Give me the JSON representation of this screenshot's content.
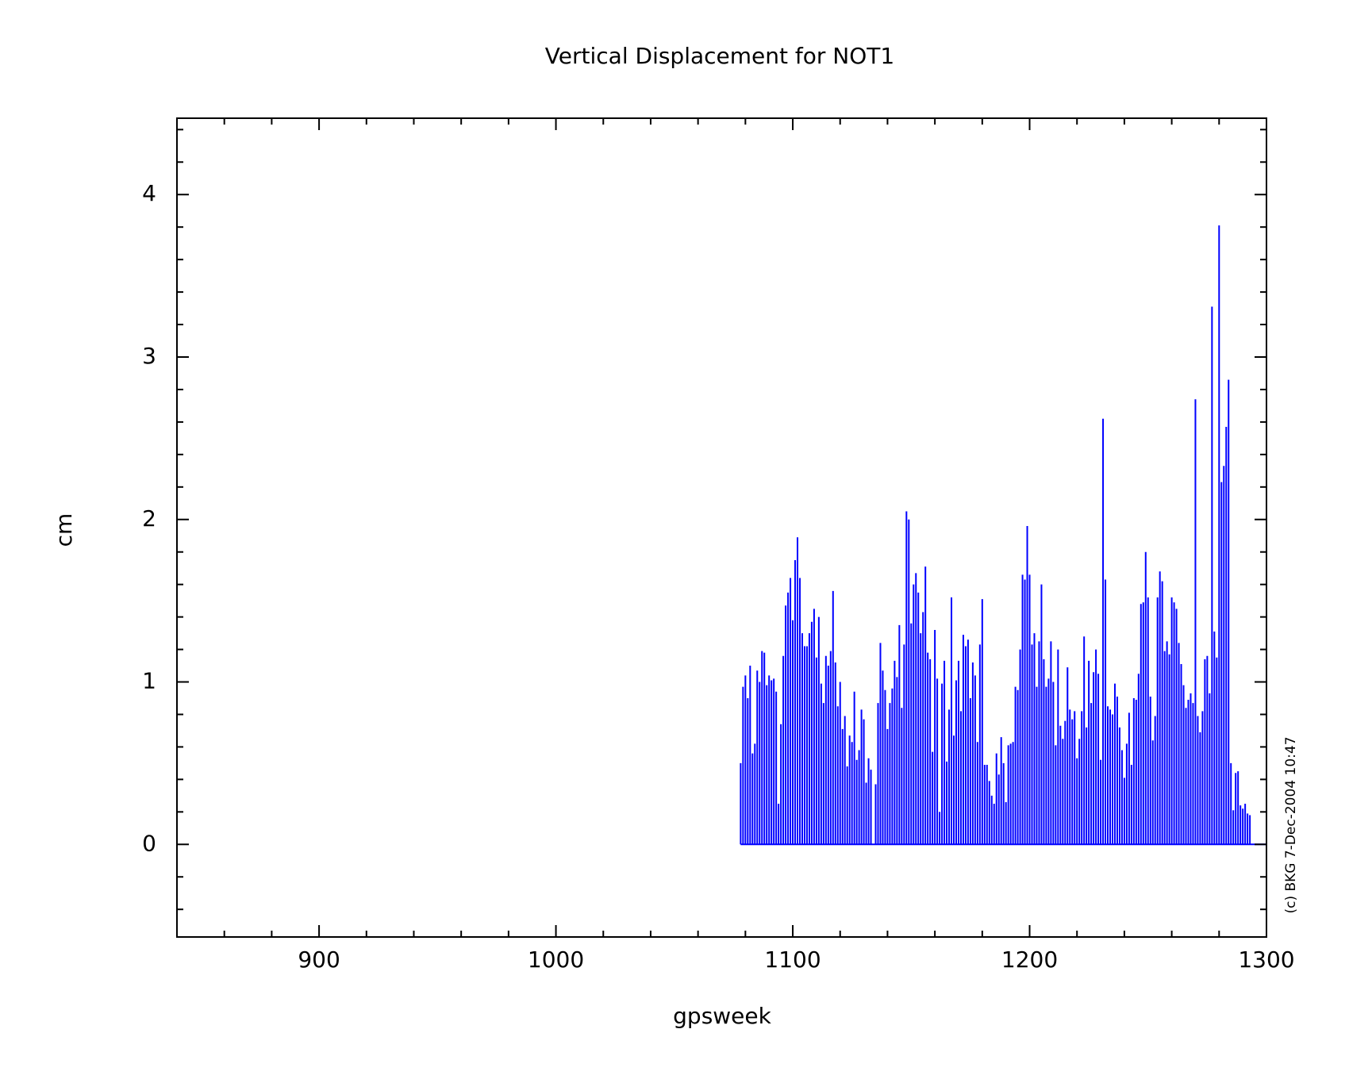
{
  "chart_data": {
    "type": "bar",
    "title": "Vertical Displacement for NOT1",
    "xlabel": "gpsweek",
    "ylabel": "cm",
    "annotation": "(c) BKG 7-Dec-2004 10:47",
    "color": "#0000ff",
    "xlim": [
      840,
      1300
    ],
    "ylim": [
      -0.57,
      4.47
    ],
    "xticks": [
      900,
      1000,
      1100,
      1200,
      1300
    ],
    "yticks": [
      0,
      1,
      2,
      3,
      4
    ],
    "xminorticks": [
      860,
      880,
      920,
      940,
      960,
      980,
      1020,
      1040,
      1060,
      1080,
      1120,
      1140,
      1160,
      1180,
      1220,
      1240,
      1260,
      1280
    ],
    "yminorticks": [
      -0.4,
      -0.2,
      0.2,
      0.4,
      0.6,
      0.8,
      1.2,
      1.4,
      1.6,
      1.8,
      2.2,
      2.4,
      2.6,
      2.8,
      3.2,
      3.4,
      3.6,
      3.8,
      4.2,
      4.4
    ],
    "x": [
      1078,
      1079,
      1080,
      1081,
      1082,
      1083,
      1084,
      1085,
      1086,
      1087,
      1088,
      1089,
      1090,
      1091,
      1092,
      1093,
      1094,
      1095,
      1096,
      1097,
      1098,
      1099,
      1100,
      1101,
      1102,
      1103,
      1104,
      1105,
      1106,
      1107,
      1108,
      1109,
      1110,
      1111,
      1112,
      1113,
      1114,
      1115,
      1116,
      1117,
      1118,
      1119,
      1120,
      1121,
      1122,
      1123,
      1124,
      1125,
      1126,
      1127,
      1128,
      1129,
      1130,
      1131,
      1132,
      1133,
      1135,
      1136,
      1137,
      1138,
      1139,
      1140,
      1141,
      1142,
      1143,
      1144,
      1145,
      1146,
      1147,
      1148,
      1149,
      1150,
      1151,
      1152,
      1153,
      1154,
      1155,
      1156,
      1157,
      1158,
      1159,
      1160,
      1161,
      1162,
      1163,
      1164,
      1165,
      1166,
      1167,
      1168,
      1169,
      1170,
      1171,
      1172,
      1173,
      1174,
      1175,
      1176,
      1177,
      1178,
      1179,
      1180,
      1181,
      1182,
      1183,
      1184,
      1185,
      1186,
      1187,
      1188,
      1189,
      1190,
      1191,
      1192,
      1193,
      1194,
      1195,
      1196,
      1197,
      1198,
      1199,
      1200,
      1201,
      1202,
      1203,
      1204,
      1205,
      1206,
      1207,
      1208,
      1209,
      1210,
      1211,
      1212,
      1213,
      1214,
      1215,
      1216,
      1217,
      1218,
      1219,
      1220,
      1221,
      1222,
      1223,
      1224,
      1225,
      1226,
      1227,
      1228,
      1229,
      1230,
      1231,
      1232,
      1233,
      1234,
      1235,
      1236,
      1237,
      1238,
      1239,
      1240,
      1241,
      1242,
      1243,
      1244,
      1245,
      1246,
      1247,
      1248,
      1249,
      1250,
      1251,
      1252,
      1253,
      1254,
      1255,
      1256,
      1257,
      1258,
      1259,
      1260,
      1261,
      1262,
      1263,
      1264,
      1265,
      1266,
      1267,
      1268,
      1269,
      1270,
      1271,
      1272,
      1273,
      1274,
      1275,
      1276,
      1277,
      1278,
      1279,
      1280,
      1281,
      1282,
      1283,
      1284,
      1285,
      1286,
      1287,
      1288,
      1289,
      1290,
      1291,
      1292,
      1293
    ],
    "values": [
      0.5,
      0.97,
      1.04,
      0.9,
      1.1,
      0.56,
      0.62,
      1.07,
      1.0,
      1.19,
      1.18,
      0.98,
      1.04,
      1.01,
      1.02,
      0.94,
      0.25,
      0.74,
      1.16,
      1.47,
      1.55,
      1.64,
      1.38,
      1.75,
      1.89,
      1.64,
      1.3,
      1.22,
      1.22,
      1.3,
      1.37,
      1.45,
      1.15,
      1.4,
      0.99,
      0.87,
      1.16,
      1.1,
      1.19,
      1.56,
      1.12,
      0.85,
      1.0,
      0.71,
      0.79,
      0.48,
      0.67,
      0.63,
      0.94,
      0.52,
      0.58,
      0.83,
      0.77,
      0.38,
      0.53,
      0.46,
      0.37,
      0.87,
      1.24,
      1.07,
      0.95,
      0.71,
      0.87,
      0.96,
      1.13,
      1.03,
      1.35,
      0.84,
      1.23,
      2.05,
      2.0,
      1.36,
      1.6,
      1.67,
      1.55,
      1.3,
      1.43,
      1.71,
      1.18,
      1.14,
      0.57,
      1.32,
      1.02,
      0.2,
      0.99,
      1.13,
      0.51,
      0.83,
      1.52,
      0.67,
      1.01,
      1.13,
      0.82,
      1.29,
      1.22,
      1.26,
      0.9,
      1.12,
      1.04,
      0.63,
      1.23,
      1.51,
      0.49,
      0.49,
      0.39,
      0.3,
      0.25,
      0.56,
      0.43,
      0.66,
      0.5,
      0.26,
      0.61,
      0.62,
      0.63,
      0.97,
      0.95,
      1.2,
      1.66,
      1.63,
      1.96,
      1.66,
      1.23,
      1.3,
      0.97,
      1.25,
      1.6,
      1.14,
      0.97,
      1.02,
      1.25,
      1.0,
      0.61,
      1.2,
      0.73,
      0.65,
      0.76,
      1.09,
      0.83,
      0.77,
      0.82,
      0.53,
      0.65,
      0.82,
      1.28,
      0.72,
      1.13,
      0.87,
      1.06,
      1.2,
      1.05,
      0.52,
      2.62,
      1.63,
      0.85,
      0.83,
      0.8,
      0.99,
      0.91,
      0.72,
      0.58,
      0.41,
      0.62,
      0.81,
      0.49,
      0.9,
      0.89,
      1.05,
      1.48,
      1.49,
      1.8,
      1.52,
      0.91,
      0.64,
      0.79,
      1.52,
      1.68,
      1.62,
      1.19,
      1.25,
      1.17,
      1.52,
      1.49,
      1.45,
      1.24,
      1.11,
      0.98,
      0.84,
      0.89,
      0.93,
      0.87,
      2.74,
      0.79,
      0.69,
      0.82,
      1.14,
      1.16,
      0.93,
      3.31,
      1.31,
      1.15,
      3.81,
      2.23,
      2.33,
      2.57,
      2.86,
      0.5,
      0.21,
      0.44,
      0.45,
      0.24,
      0.22,
      0.25,
      0.19,
      0.18
    ]
  }
}
